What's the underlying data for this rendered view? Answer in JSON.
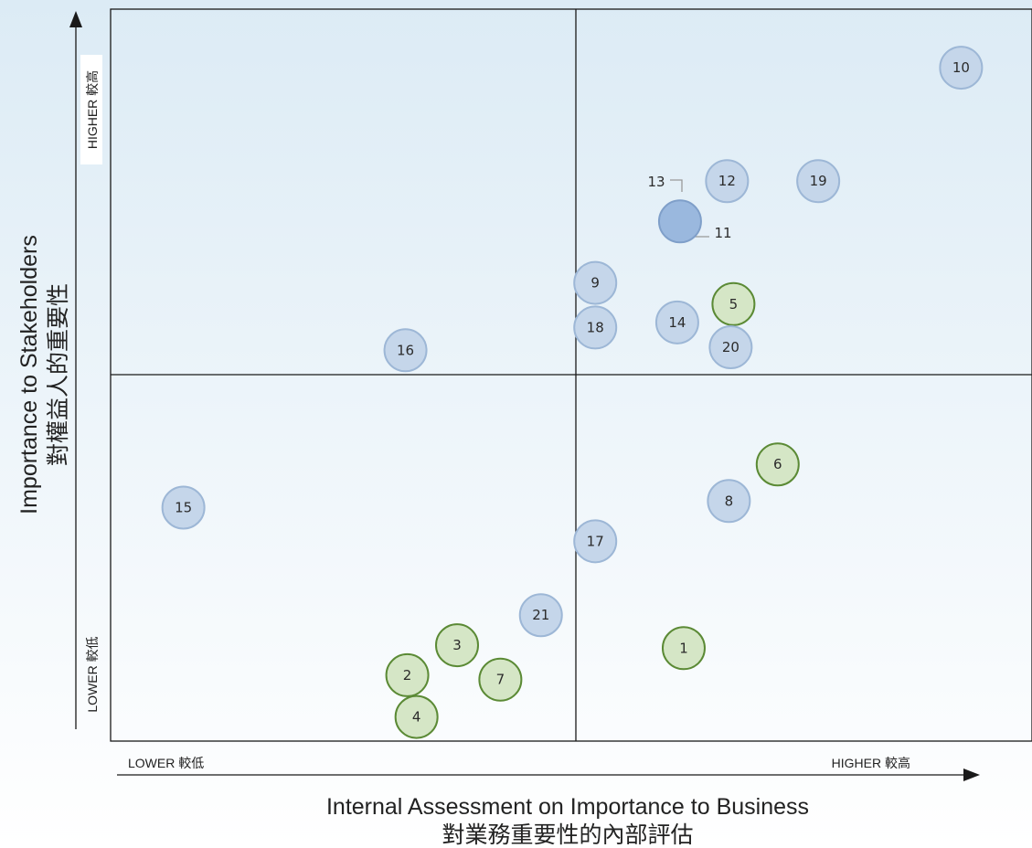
{
  "chart_data": {
    "type": "scatter",
    "title": "",
    "xlabel": "Internal Assessment on Importance to Business",
    "xlabel_zh": "對業務重要性的內部評估",
    "ylabel": "Importance to Stakeholders",
    "ylabel_zh": "對權益人的重要性",
    "x_low_label": "LOWER 較低",
    "x_high_label": "HIGHER 較高",
    "y_low_label": "LOWER 較低",
    "y_high_label": "HIGHER 較高",
    "xlim": [
      0,
      100
    ],
    "ylim": [
      0,
      100
    ],
    "quadrant_split": {
      "x": 50,
      "y": 50
    },
    "grid": false,
    "colors": {
      "blue_fill": "#c5d6ea",
      "blue_stroke": "#9db7d6",
      "green_fill": "#d5e6c6",
      "green_stroke": "#5b8a35",
      "highlight_fill": "#9ab8de",
      "highlight_stroke": "#7f9fc9",
      "background_top": "#dcebf5",
      "background_bottom": "#ffffff"
    },
    "points": [
      {
        "label": "1",
        "x": 62.2,
        "y": 12.7,
        "group": "green"
      },
      {
        "label": "2",
        "x": 32.2,
        "y": 9.0,
        "group": "green"
      },
      {
        "label": "3",
        "x": 37.6,
        "y": 13.1,
        "group": "green"
      },
      {
        "label": "4",
        "x": 33.2,
        "y": 3.3,
        "group": "green"
      },
      {
        "label": "5",
        "x": 67.6,
        "y": 59.7,
        "group": "green"
      },
      {
        "label": "6",
        "x": 72.4,
        "y": 37.8,
        "group": "green"
      },
      {
        "label": "7",
        "x": 42.3,
        "y": 8.4,
        "group": "green"
      },
      {
        "label": "8",
        "x": 67.1,
        "y": 32.8,
        "group": "blue"
      },
      {
        "label": "9",
        "x": 52.6,
        "y": 62.6,
        "group": "blue"
      },
      {
        "label": "10",
        "x": 92.3,
        "y": 92.0,
        "group": "blue"
      },
      {
        "label": "11",
        "x": 61.8,
        "y": 71.0,
        "group": "highlight"
      },
      {
        "label": "12",
        "x": 66.9,
        "y": 76.5,
        "group": "blue"
      },
      {
        "label": "14",
        "x": 61.5,
        "y": 57.2,
        "group": "blue"
      },
      {
        "label": "15",
        "x": 7.9,
        "y": 31.9,
        "group": "blue"
      },
      {
        "label": "16",
        "x": 32.0,
        "y": 53.4,
        "group": "blue"
      },
      {
        "label": "17",
        "x": 52.6,
        "y": 27.3,
        "group": "blue"
      },
      {
        "label": "18",
        "x": 52.6,
        "y": 56.5,
        "group": "blue"
      },
      {
        "label": "19",
        "x": 76.8,
        "y": 76.5,
        "group": "blue"
      },
      {
        "label": "20",
        "x": 67.3,
        "y": 53.8,
        "group": "blue"
      },
      {
        "label": "21",
        "x": 46.7,
        "y": 17.2,
        "group": "blue"
      }
    ],
    "callouts": [
      {
        "label": "13",
        "side": "left"
      },
      {
        "label": "11",
        "side": "right"
      }
    ]
  }
}
